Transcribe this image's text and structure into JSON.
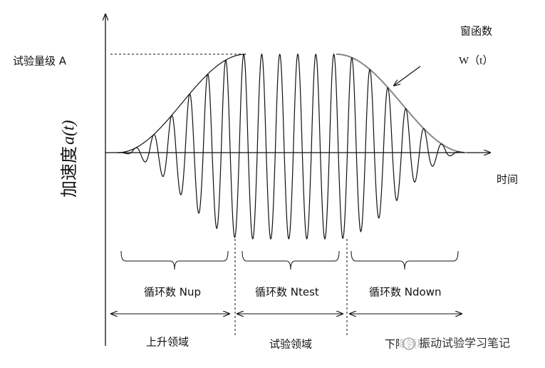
{
  "diagram": {
    "test_level": "试验量级 A",
    "y_label": "加速度",
    "y_label_symbol": "a(t)",
    "window_title": "窗函数",
    "window_symbol": "W（t）",
    "x_label": "时间",
    "cycles": [
      "循环数 Nup",
      "循环数 Ntest",
      "循环数 Ndown"
    ],
    "regions": [
      "上升领域",
      "试验领域",
      "下降领域"
    ],
    "watermark": "振动试验学习笔记"
  }
}
